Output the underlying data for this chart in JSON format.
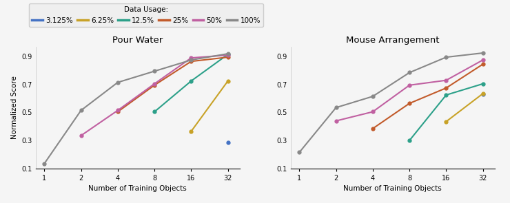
{
  "x_values": [
    1,
    2,
    4,
    8,
    16,
    32
  ],
  "legend_labels": [
    "3.125%",
    "6.25%",
    "12.5%",
    "25%",
    "50%",
    "100%"
  ],
  "colors": [
    "#4472c4",
    "#c8a227",
    "#2ca089",
    "#c25b2b",
    "#c060a1",
    "#888888"
  ],
  "pour_water": {
    "title": "Pour Water",
    "series": {
      "3.125%": [
        null,
        null,
        null,
        null,
        null,
        0.285
      ],
      "6.25%": [
        null,
        null,
        null,
        null,
        0.365,
        0.725
      ],
      "12.5%": [
        null,
        null,
        null,
        0.505,
        0.725,
        0.915
      ],
      "25%": [
        null,
        null,
        0.505,
        0.695,
        0.865,
        0.895
      ],
      "50%": [
        null,
        0.335,
        0.515,
        0.705,
        0.89,
        0.91
      ],
      "100%": [
        0.135,
        0.515,
        0.715,
        0.795,
        0.875,
        0.92
      ]
    }
  },
  "mouse_arrangement": {
    "title": "Mouse Arrangement",
    "series": {
      "3.125%": [
        null,
        null,
        null,
        null,
        null,
        0.63
      ],
      "6.25%": [
        null,
        null,
        null,
        null,
        0.435,
        0.635
      ],
      "12.5%": [
        null,
        null,
        null,
        0.3,
        0.625,
        0.705
      ],
      "25%": [
        null,
        null,
        0.385,
        0.565,
        0.675,
        0.845
      ],
      "50%": [
        null,
        0.44,
        0.505,
        0.695,
        0.73,
        0.875
      ],
      "100%": [
        0.215,
        0.535,
        0.615,
        0.785,
        0.895,
        0.925
      ]
    }
  },
  "ylabel": "Normalized Score",
  "xlabel": "Number of Training Objects",
  "ylim": [
    0.1,
    0.97
  ],
  "yticks": [
    0.1,
    0.3,
    0.5,
    0.7,
    0.9
  ],
  "xticks": [
    1,
    2,
    4,
    8,
    16,
    32
  ],
  "background_color": "#f5f5f5",
  "legend_title": "Data Usage:"
}
